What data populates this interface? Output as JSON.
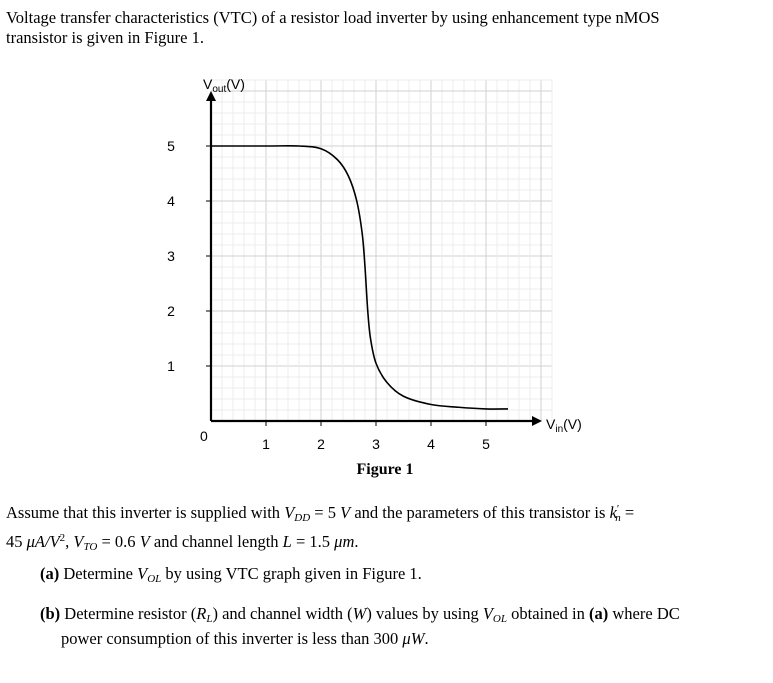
{
  "intro_line1": "Voltage transfer characteristics (VTC) of a resistor load inverter by using enhancement type nMOS",
  "intro_line2": "transistor is given in Figure 1.",
  "figure_caption": "Figure 1",
  "chart_data": {
    "type": "line",
    "title": "",
    "xlabel": "V",
    "xlabel_sub": "in",
    "xlabel_unit": "(V)",
    "ylabel": "V",
    "ylabel_sub": "out",
    "ylabel_unit": "(V)",
    "xlim": [
      0,
      6
    ],
    "ylim": [
      0,
      6
    ],
    "x_ticks": [
      "1",
      "2",
      "3",
      "4",
      "5"
    ],
    "y_ticks": [
      "1",
      "2",
      "3",
      "4",
      "5"
    ],
    "origin_label": "0",
    "grid": true,
    "series": [
      {
        "x": [
          0.0,
          1.0,
          1.6,
          2.0,
          2.3,
          2.5,
          2.65,
          2.75,
          2.8,
          2.85,
          2.9,
          3.0,
          3.2,
          3.5,
          4.0,
          4.5,
          5.0,
          5.4
        ],
        "y": [
          5.0,
          5.0,
          5.0,
          4.95,
          4.75,
          4.45,
          4.0,
          3.4,
          2.8,
          2.0,
          1.5,
          1.05,
          0.7,
          0.45,
          0.3,
          0.25,
          0.22,
          0.22
        ]
      }
    ]
  },
  "assume_line1": {
    "t1": "Assume that this inverter is supplied with ",
    "vdd": "V",
    "vdd_sub": "DD",
    "t2": " = 5 ",
    "v_unit": "V",
    "t3": " and the parameters of this transistor is ",
    "kn": "k",
    "kn_sub": "n",
    "kn_prime": "′",
    "t4": " ="
  },
  "assume_line2": {
    "t1": "45 ",
    "unit1": "μA/V",
    "sup": "2",
    "t2": ", ",
    "vto": "V",
    "vto_sub": "TO",
    "t3": " = 0.6 ",
    "v_unit": "V",
    "t4": " and channel length ",
    "l": "L",
    "t5": " = 1.5 ",
    "um": "μm",
    "t6": "."
  },
  "question_a": {
    "label": "(a)",
    "t1": " Determine ",
    "vol": "V",
    "vol_sub": "OL",
    "t2": " by using VTC graph given in Figure 1."
  },
  "question_b": {
    "label": "(b)",
    "t1": " Determine resistor (",
    "rl": "R",
    "rl_sub": "L",
    "t2": ") and channel width (",
    "w": "W",
    "t3": ") values by using ",
    "vol": "V",
    "vol_sub": "OL",
    "t4": " obtained in ",
    "ref": "(a)",
    "t5": " where DC",
    "line2_t1": "power consumption of this inverter is less than 300 ",
    "uw": "μW",
    "line2_t2": "."
  }
}
